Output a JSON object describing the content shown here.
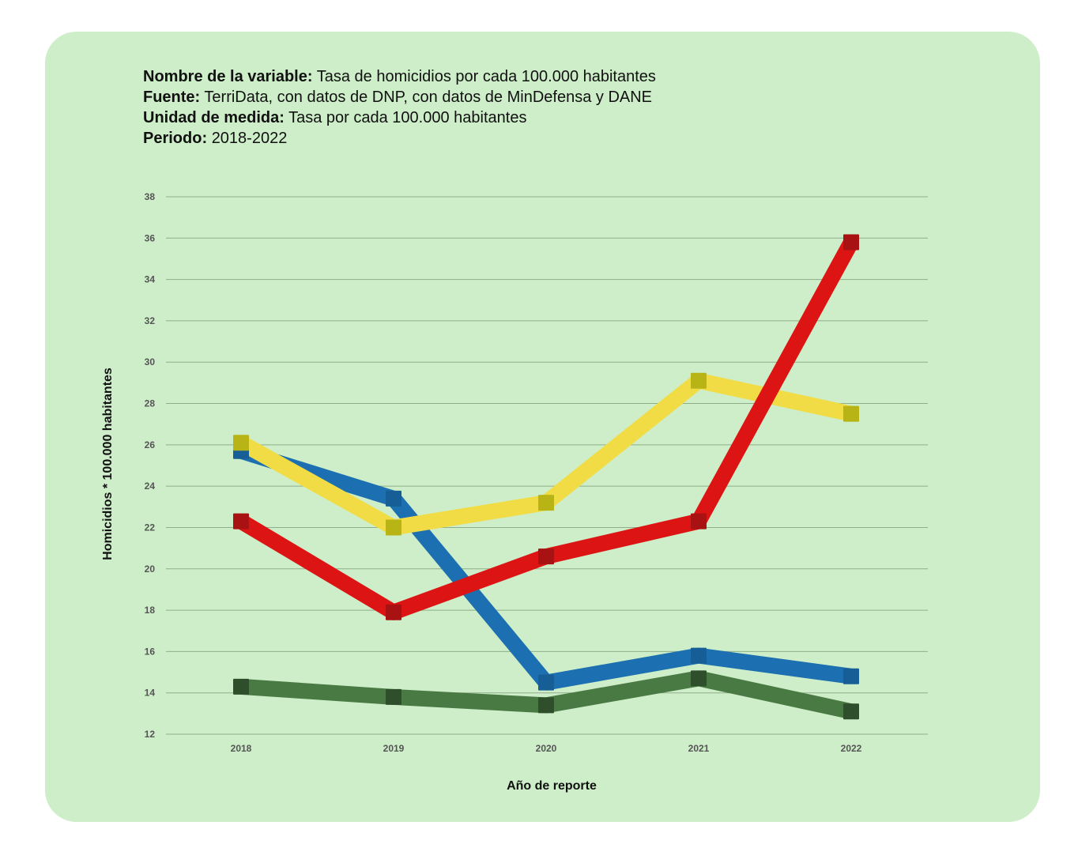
{
  "meta": {
    "variable_label": "Nombre de la variable:",
    "variable_value": "Tasa de homicidios por cada 100.000 habitantes",
    "source_label": "Fuente:",
    "source_value": "TerriData, con datos de DNP, con datos de MinDefensa y DANE",
    "unit_label": "Unidad de medida:",
    "unit_value": "Tasa por cada 100.000 habitantes",
    "period_label": "Periodo:",
    "period_value": "2018-2022"
  },
  "chart_data": {
    "type": "line",
    "title": "",
    "xlabel": "Año de reporte",
    "ylabel": "Homicidios * 100.000 habitantes",
    "x": [
      "2018",
      "2019",
      "2020",
      "2021",
      "2022"
    ],
    "ylim": [
      12,
      38
    ],
    "yticks": [
      "12",
      "14",
      "16",
      "18",
      "20",
      "22",
      "24",
      "26",
      "28",
      "30",
      "32",
      "34",
      "36",
      "38"
    ],
    "grid": true,
    "legend": "none",
    "series": [
      {
        "color": "#1c6fb0",
        "marker_color": "#165e95",
        "values": [
          25.7,
          23.4,
          14.5,
          15.8,
          14.8
        ]
      },
      {
        "color": "#f2dc45",
        "marker_color": "#b8b415",
        "values": [
          26.1,
          22.0,
          23.2,
          29.1,
          27.5
        ]
      },
      {
        "color": "#dc1414",
        "marker_color": "#a81212",
        "values": [
          22.3,
          17.9,
          20.6,
          22.3,
          35.8
        ]
      },
      {
        "color": "#4a7a44",
        "marker_color": "#2f4e2b",
        "values": [
          14.3,
          13.8,
          13.4,
          14.7,
          13.1
        ]
      }
    ]
  }
}
